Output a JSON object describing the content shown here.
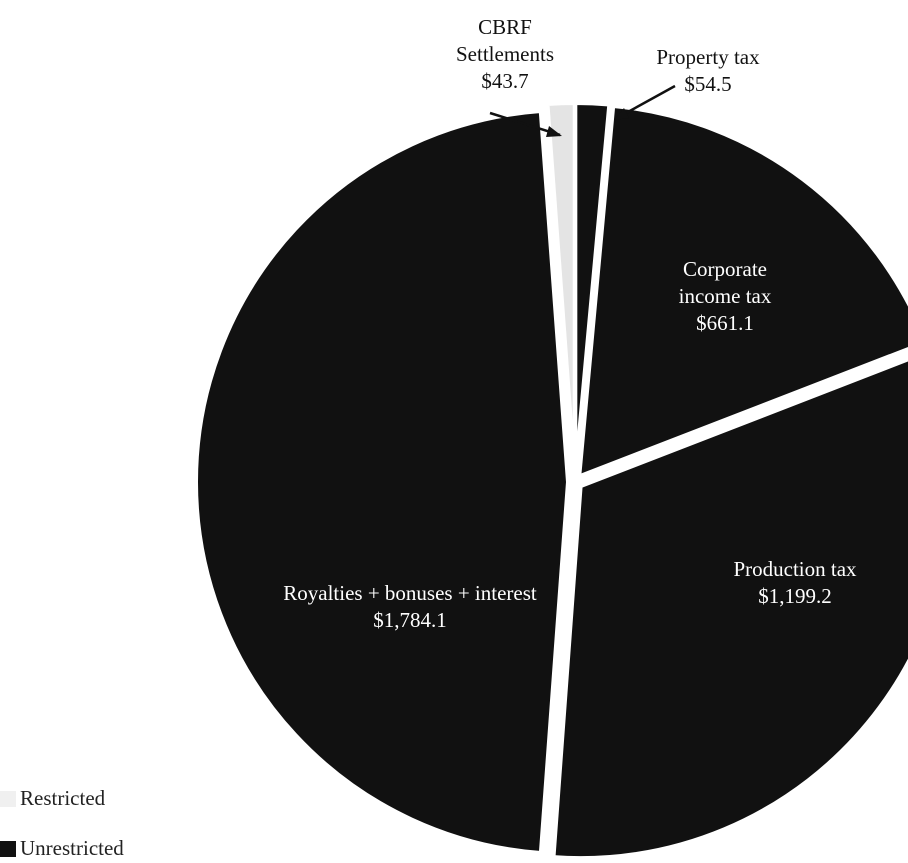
{
  "chart_data": {
    "type": "pie",
    "categories": [
      "Property tax",
      "Corporate income tax",
      "Production tax",
      "Royalties + bonuses + interest",
      "CBRF Settlements"
    ],
    "values": [
      54.5,
      661.1,
      1199.2,
      1784.1,
      43.7
    ],
    "value_labels": [
      "$54.5",
      "$661.1",
      "$1,199.2",
      "$1,784.1",
      "$43.7"
    ],
    "colors": [
      "#111111",
      "#111111",
      "#111111",
      "#111111",
      "#e4e4e4"
    ],
    "legend": [
      {
        "name": "Restricted",
        "color": "#f0f0f0"
      },
      {
        "name": "Unrestricted",
        "color": "#111111"
      }
    ]
  }
}
